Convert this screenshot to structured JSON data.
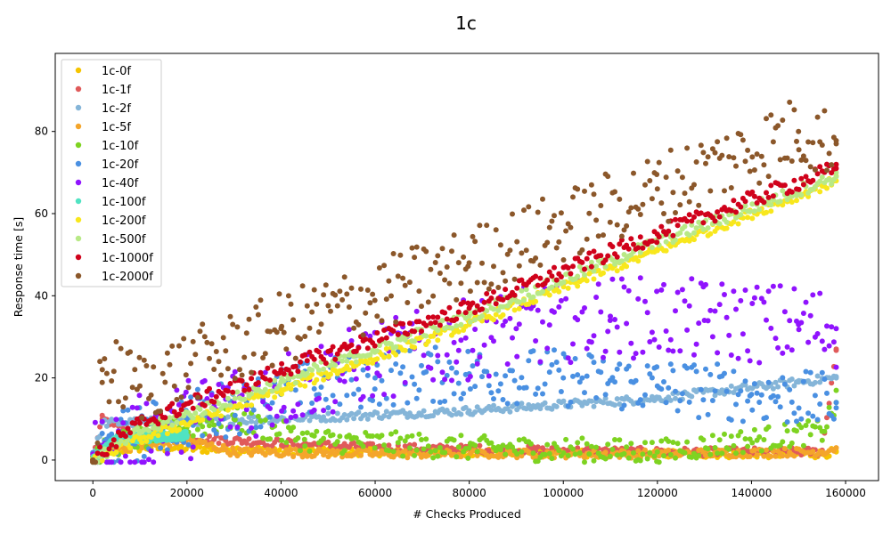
{
  "chart_data": {
    "type": "scatter",
    "title": "1c",
    "xlabel": "# Checks Produced",
    "ylabel": "Response time [s]",
    "xlim": [
      -8000,
      167000
    ],
    "ylim": [
      -5,
      99
    ],
    "xticks": [
      0,
      20000,
      40000,
      60000,
      80000,
      100000,
      120000,
      140000,
      160000
    ],
    "xtick_labels": [
      "0",
      "20000",
      "40000",
      "60000",
      "80000",
      "100000",
      "120000",
      "140000",
      "160000"
    ],
    "yticks": [
      0,
      20,
      40,
      60,
      80
    ],
    "ytick_labels": [
      "0",
      "20",
      "40",
      "60",
      "80"
    ],
    "legend_position": "upper-left",
    "series": [
      {
        "name": "1c-0f",
        "color": "#f5c400",
        "x": [
          0,
          2000,
          10000,
          60000,
          120000,
          155000,
          158000
        ],
        "y": [
          0,
          2,
          3,
          2,
          1.5,
          1.5,
          2
        ]
      },
      {
        "name": "1c-1f",
        "color": "#e05a5a",
        "x": [
          0,
          2000,
          10000,
          60000,
          120000,
          155000,
          158000
        ],
        "y": [
          0,
          10,
          6,
          3,
          2,
          2,
          27
        ]
      },
      {
        "name": "1c-2f",
        "color": "#85b5d8",
        "x": [
          0,
          2000,
          40000,
          80000,
          120000,
          150000,
          158000
        ],
        "y": [
          0,
          9,
          10,
          12,
          15,
          19,
          20
        ]
      },
      {
        "name": "1c-5f",
        "color": "#f4a52b",
        "x": [
          0,
          5000,
          15000,
          20000,
          30000,
          60000,
          120000,
          155000,
          158000
        ],
        "y": [
          0,
          3,
          4,
          5,
          2,
          1.5,
          1.5,
          2,
          3
        ]
      },
      {
        "name": "1c-10f",
        "color": "#7ed321",
        "x": [
          0,
          5000,
          20000,
          30000,
          45000,
          80000,
          120000,
          155000,
          158000
        ],
        "y": [
          0,
          4,
          8,
          10,
          5,
          3,
          2,
          7,
          14
        ]
      },
      {
        "name": "1c-20f",
        "color": "#4a90e2",
        "x": [
          0,
          5000,
          20000,
          40000,
          60000,
          80000,
          100000,
          120000,
          140000,
          158000
        ],
        "y": [
          0,
          5,
          10,
          16,
          20,
          21,
          20,
          18,
          16,
          14
        ]
      },
      {
        "name": "1c-40f",
        "color": "#9013fe",
        "x": [
          0,
          10000,
          30000,
          60000,
          90000,
          110000,
          130000,
          150000,
          158000
        ],
        "y": [
          0,
          6,
          14,
          24,
          32,
          35,
          34,
          33,
          32
        ]
      },
      {
        "name": "1c-100f",
        "color": "#50e3c2",
        "x": [
          0,
          5000,
          20000
        ],
        "y": [
          0,
          5,
          6
        ]
      },
      {
        "name": "1c-200f",
        "color": "#f8e71c",
        "x": [
          0,
          10000,
          40000,
          80000,
          120000,
          158000
        ],
        "y": [
          0,
          5,
          17,
          33,
          51,
          68
        ]
      },
      {
        "name": "1c-500f",
        "color": "#b8e986",
        "x": [
          0,
          10000,
          40000,
          80000,
          120000,
          158000
        ],
        "y": [
          0,
          7,
          19,
          35,
          53,
          69
        ]
      },
      {
        "name": "1c-1000f",
        "color": "#d0021b",
        "x": [
          0,
          10000,
          40000,
          80000,
          120000,
          158000
        ],
        "y": [
          0,
          9,
          22,
          37,
          55,
          71
        ]
      },
      {
        "name": "1c-2000f",
        "color": "#8b572a",
        "x": [
          0,
          2000,
          10000,
          40000,
          80000,
          120000,
          150000,
          158000
        ],
        "y": [
          0,
          22,
          18,
          32,
          48,
          66,
          80,
          77
        ]
      }
    ]
  }
}
